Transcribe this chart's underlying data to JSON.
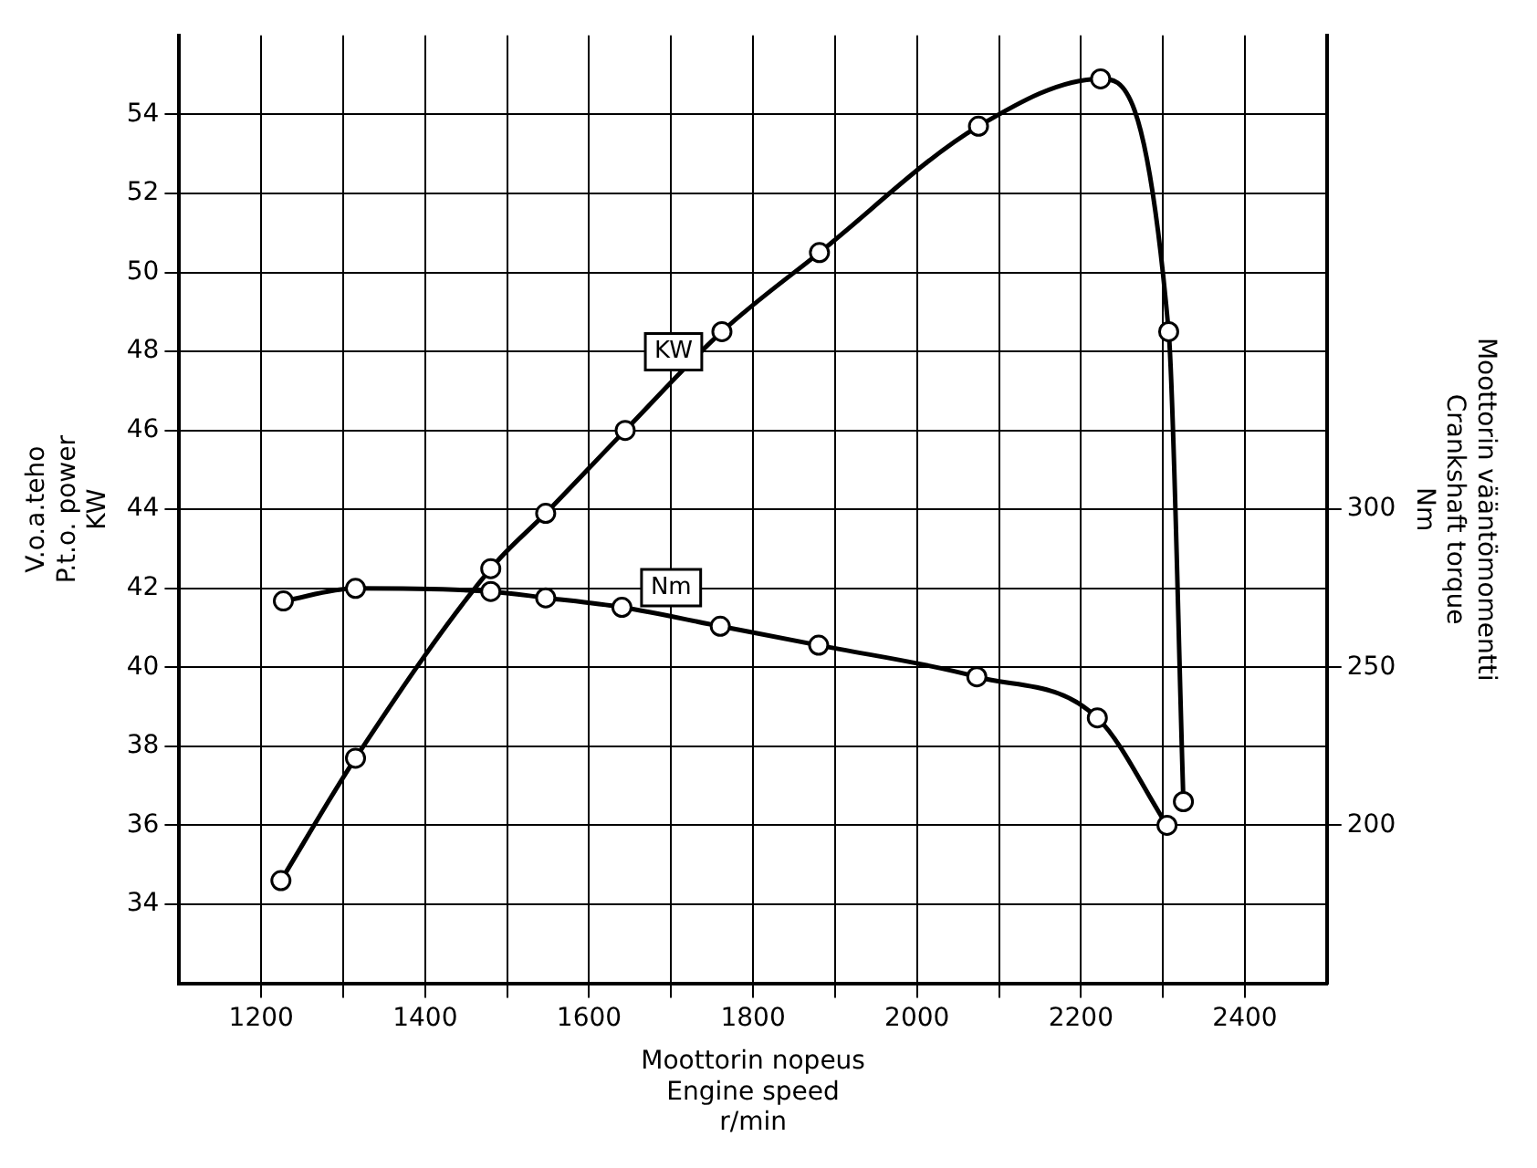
{
  "chart_data": {
    "type": "line",
    "xlabel": "Moottorin nopeus\nEngine speed\nr/min",
    "ylabel": "V.o.a.teho\nP.t.o. power\nKW",
    "y2label": "Moottorin vääntömomentti\nCrankshaft torque\nNm",
    "xlim": [
      1100,
      2500
    ],
    "xticks": [
      1200,
      {
        "value": 1300,
        "label": null
      },
      1400,
      {
        "value": 1500,
        "label": null
      },
      1600,
      {
        "value": 1700,
        "label": null
      },
      1800,
      {
        "value": 1900,
        "label": null
      },
      2000,
      {
        "value": 2100,
        "label": null
      },
      2200,
      {
        "value": 2300,
        "label": null
      },
      2400
    ],
    "ylim": [
      32,
      56
    ],
    "yticks": [
      34,
      36,
      38,
      40,
      42,
      44,
      46,
      48,
      50,
      52,
      54
    ],
    "y2lim": [
      150,
      450
    ],
    "y2ticks": [
      200,
      250,
      300
    ],
    "grid": true,
    "legend": false,
    "marker": "circle",
    "line_style": "solid",
    "series": [
      {
        "name": "KW",
        "color": "#000000",
        "x": [
          1224,
          1315,
          1480,
          1547,
          1644,
          1762,
          1881,
          2075,
          2224,
          2307,
          2325
        ],
        "values": [
          34.6,
          37.7,
          42.5,
          43.9,
          46.0,
          48.5,
          50.5,
          53.7,
          54.9,
          48.5,
          36.6
        ]
      },
      {
        "name": "Nm",
        "color": "#000000",
        "axis": "y2",
        "x": [
          1227,
          1315,
          1480,
          1547,
          1640,
          1760,
          1880,
          2073,
          2220,
          2305
        ],
        "values": [
          271,
          275,
          274,
          272,
          269,
          263,
          257,
          247,
          234,
          200
        ]
      }
    ]
  }
}
